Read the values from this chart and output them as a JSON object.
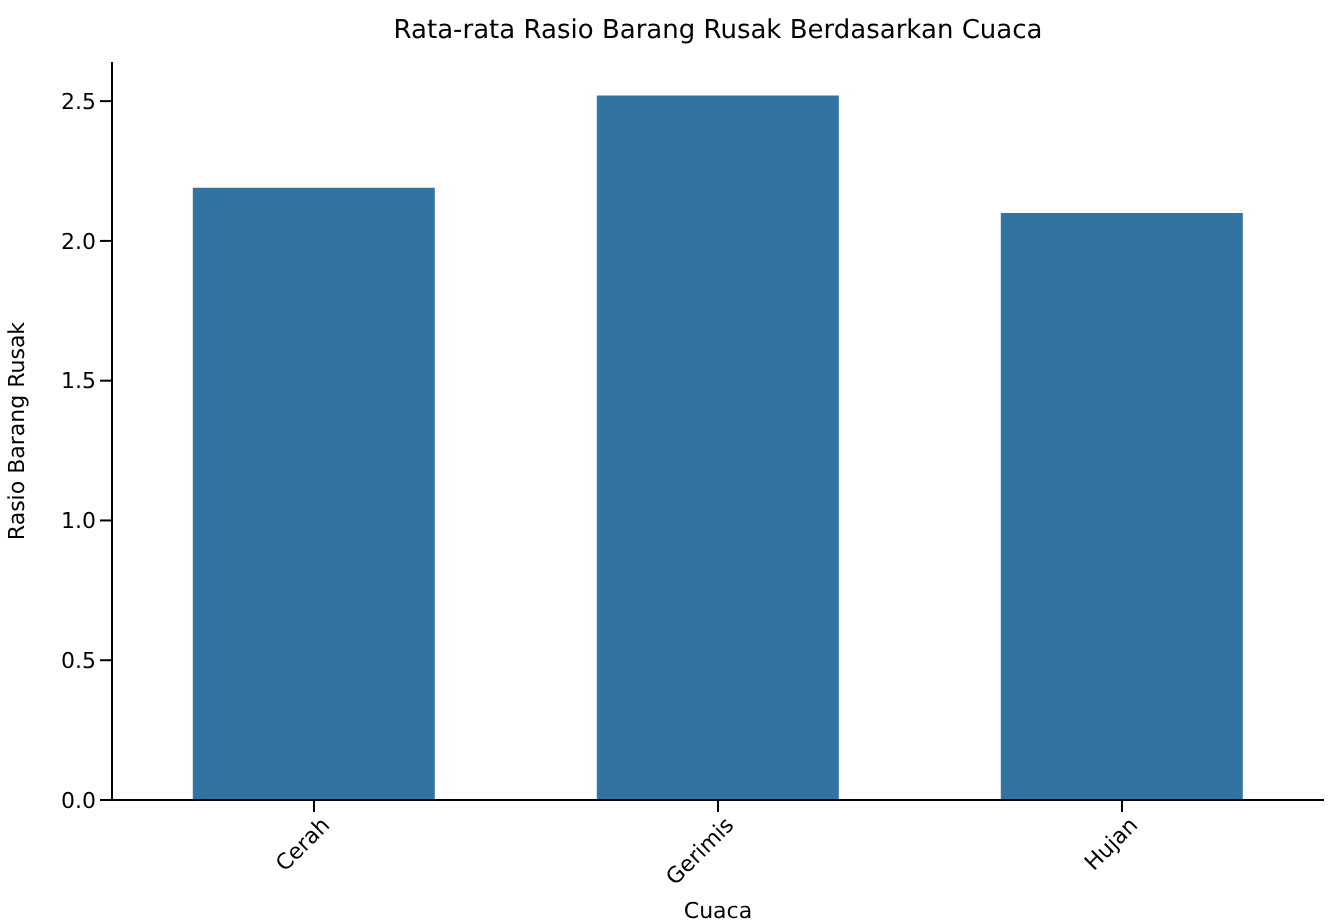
{
  "chart_data": {
    "type": "bar",
    "title": "Rata-rata Rasio Barang Rusak Berdasarkan Cuaca",
    "xlabel": "Cuaca",
    "ylabel": "Rasio Barang Rusak",
    "categories": [
      "Cerah",
      "Gerimis",
      "Hujan"
    ],
    "values": [
      2.19,
      2.52,
      2.1
    ],
    "color": "#3274a1",
    "ylim": [
      0,
      2.64
    ],
    "yticks": [
      {
        "value": 0,
        "label": "0.0"
      },
      {
        "value": 0.5,
        "label": "0.5"
      },
      {
        "value": 1,
        "label": "1.0"
      },
      {
        "value": 1.5,
        "label": "1.5"
      },
      {
        "value": 2,
        "label": "2.0"
      },
      {
        "value": 2.5,
        "label": "2.5"
      }
    ],
    "grid": false
  }
}
